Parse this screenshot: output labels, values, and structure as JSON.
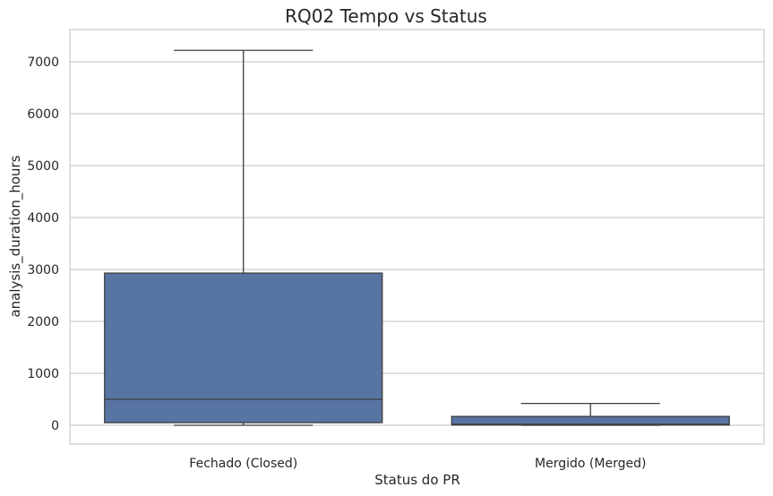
{
  "chart_data": {
    "type": "box",
    "title": "RQ02 Tempo vs Status",
    "xlabel": "Status do PR",
    "ylabel": "analysis_duration_hours",
    "ylim": [
      -350,
      7600
    ],
    "yticks": [
      0,
      1000,
      2000,
      3000,
      4000,
      5000,
      6000,
      7000
    ],
    "ytick_labels": [
      "0",
      "1000",
      "2000",
      "3000",
      "4000",
      "5000",
      "6000",
      "7000"
    ],
    "grid": "horizontal",
    "box_color": "#5874a3",
    "line_color": "#3d3d3d",
    "categories": [
      "Fechado (Closed)",
      "Mergido (Merged)"
    ],
    "boxes": [
      {
        "category": "Fechado (Closed)",
        "min": 0,
        "q1": 50,
        "median": 500,
        "q3": 2930,
        "max": 7220
      },
      {
        "category": "Mergido (Merged)",
        "min": 0,
        "q1": 5,
        "median": 20,
        "q3": 170,
        "max": 420
      }
    ]
  }
}
